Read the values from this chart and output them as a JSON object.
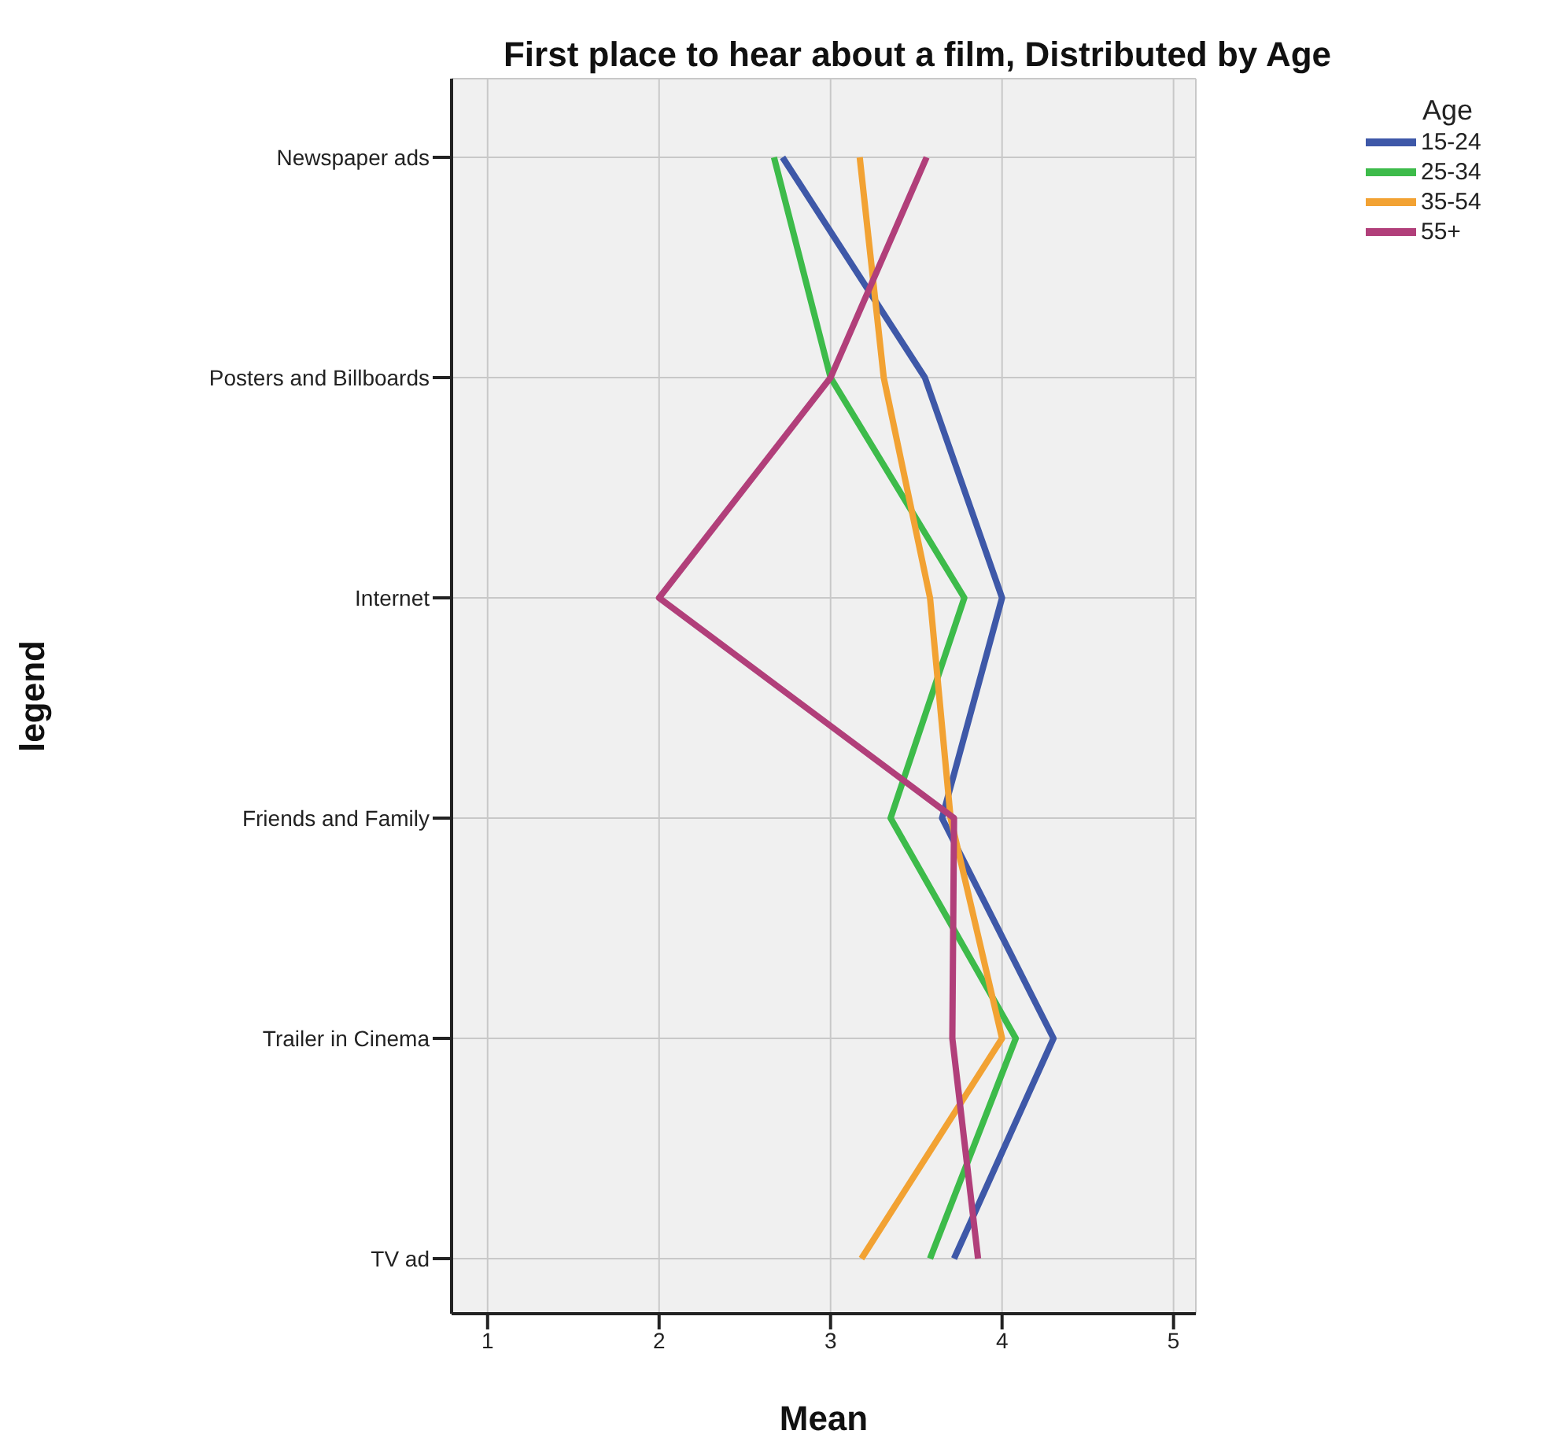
{
  "chart_data": {
    "type": "line",
    "title": "First place to hear about a film, Distributed by Age",
    "xlabel": "Mean",
    "ylabel": "legend",
    "legend_title": "Age",
    "orientation": "horizontal",
    "categories": [
      "Newspaper ads",
      "Posters and Billboards",
      "Internet",
      "Friends and Family",
      "Trailer in Cinema",
      "TV ad"
    ],
    "series": [
      {
        "name": "15-24",
        "color": "#3e58a8",
        "values": [
          2.72,
          3.55,
          4.0,
          3.65,
          4.3,
          3.72
        ]
      },
      {
        "name": "25-34",
        "color": "#3dbb4a",
        "values": [
          2.67,
          3.0,
          3.78,
          3.35,
          4.08,
          3.58
        ]
      },
      {
        "name": "35-54",
        "color": "#f2a233",
        "values": [
          3.17,
          3.31,
          3.58,
          3.7,
          4.0,
          3.18
        ]
      },
      {
        "name": "55+",
        "color": "#b13f7a",
        "values": [
          3.56,
          3.0,
          2.0,
          3.72,
          3.71,
          3.86
        ]
      }
    ],
    "xlim": [
      0.79,
      5.13
    ],
    "xticks": [
      1,
      2,
      3,
      4,
      5
    ],
    "grid": true,
    "legend": "top right",
    "marker": "none",
    "line_style": "solid"
  }
}
